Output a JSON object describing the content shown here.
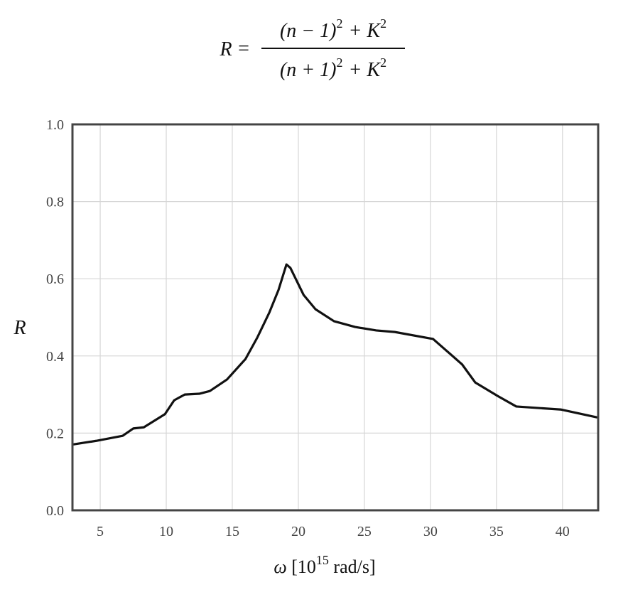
{
  "formula": {
    "lhs": "R",
    "equals": "=",
    "numerator": {
      "base": "(n − 1)",
      "exp": "2",
      "plus": "+ K",
      "exp2": "2"
    },
    "denominator": {
      "base": "(n + 1)",
      "exp": "2",
      "plus": "+ K",
      "exp2": "2"
    }
  },
  "chart_data": {
    "type": "line",
    "ylabel": "R",
    "xlabel": {
      "symbol": "ω",
      "text": " [10",
      "sup": "15",
      "unit": " rad/s]"
    },
    "x": [
      3.0,
      4.7,
      6.7,
      7.5,
      8.3,
      9.9,
      10.6,
      11.4,
      12.5,
      13.3,
      14.6,
      16.0,
      16.9,
      17.8,
      18.5,
      19.1,
      19.4,
      20.4,
      21.3,
      22.7,
      24.3,
      25.9,
      27.3,
      30.2,
      31.0,
      32.4,
      33.4,
      35.1,
      36.5,
      39.9,
      42.6
    ],
    "series": [
      {
        "color": "#111111",
        "values": [
          0.171,
          0.18,
          0.193,
          0.212,
          0.215,
          0.249,
          0.285,
          0.3,
          0.302,
          0.309,
          0.339,
          0.392,
          0.448,
          0.512,
          0.571,
          0.637,
          0.628,
          0.558,
          0.521,
          0.49,
          0.475,
          0.466,
          0.462,
          0.444,
          0.42,
          0.378,
          0.331,
          0.296,
          0.269,
          0.261,
          0.241
        ]
      }
    ],
    "xlim": [
      2.9,
      42.7
    ],
    "ylim": [
      0,
      1
    ],
    "xticks": [
      5,
      10,
      15,
      20,
      25,
      30,
      35,
      40
    ],
    "yticks": [
      {
        "value": 0,
        "label": "0.0"
      },
      0.2,
      0.4,
      0.6,
      0.8,
      {
        "value": 1,
        "label": "1.0"
      }
    ],
    "grid": true
  }
}
